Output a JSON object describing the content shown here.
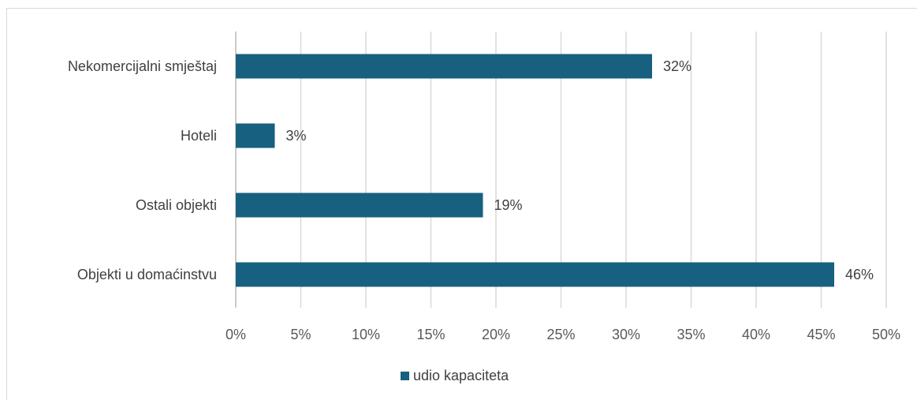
{
  "chart_data": {
    "type": "bar",
    "orientation": "horizontal",
    "categories": [
      "Nekomercijalni smještaj",
      "Hoteli",
      "Ostali objekti",
      "Objekti u domaćinstvu"
    ],
    "series": [
      {
        "name": "udio kapaciteta",
        "values": [
          32,
          3,
          19,
          46
        ],
        "color": "#17607f"
      }
    ],
    "data_labels": [
      "32%",
      "3%",
      "19%",
      "46%"
    ],
    "x_ticks": [
      "0%",
      "5%",
      "10%",
      "15%",
      "20%",
      "25%",
      "30%",
      "35%",
      "40%",
      "45%",
      "50%"
    ],
    "xlim": [
      0,
      50
    ],
    "grid": "vertical",
    "legend_position": "bottom"
  }
}
